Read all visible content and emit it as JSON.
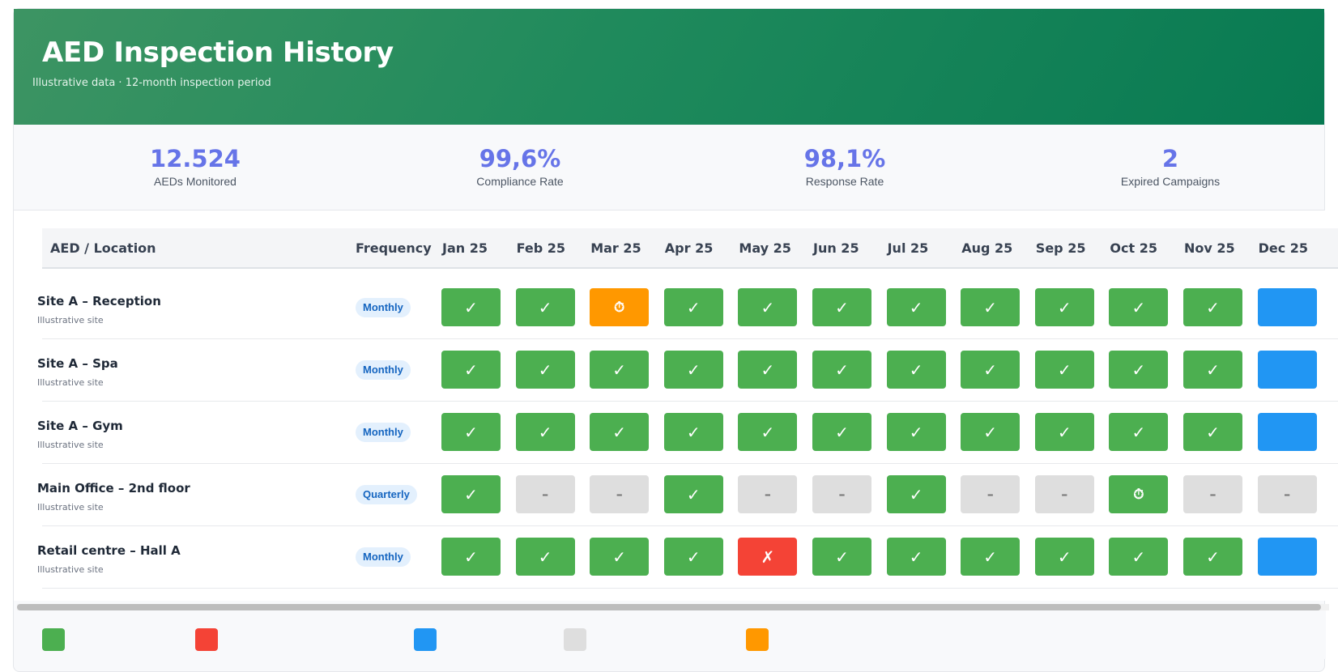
{
  "header": {
    "title": "AED Inspection History",
    "subtitle": "Illustrative data · 12-month inspection period"
  },
  "stats": [
    {
      "value": "12.524",
      "label": "AEDs Monitored"
    },
    {
      "value": "99,6%",
      "label": "Compliance Rate"
    },
    {
      "value": "98,1%",
      "label": "Response Rate"
    },
    {
      "value": "2",
      "label": "Expired Campaigns"
    }
  ],
  "table": {
    "columns": {
      "location": "AED / Location",
      "frequency": "Frequency",
      "months": [
        "Jan 25",
        "Feb 25",
        "Mar 25",
        "Apr 25",
        "May 25",
        "Jun 25",
        "Jul 25",
        "Aug 25",
        "Sep 25",
        "Oct 25",
        "Nov 25",
        "Dec 25"
      ]
    },
    "status_glyphs": {
      "ok": "✓",
      "na": "–",
      "warn": "⏱",
      "sched": "⏱",
      "fail": "✗",
      "blue": ""
    },
    "status_colors": {
      "ok": "#4caf50",
      "na": "#dedede",
      "warn": "#ff9800",
      "fail": "#f44336",
      "blue": "#2196f3"
    },
    "rows": [
      {
        "name": "Site A – Reception",
        "sub": "Illustrative site",
        "frequency": "Monthly",
        "statuses": [
          "ok",
          "ok",
          "warn",
          "ok",
          "ok",
          "ok",
          "ok",
          "ok",
          "ok",
          "ok",
          "ok",
          "blue"
        ]
      },
      {
        "name": "Site A – Spa",
        "sub": "Illustrative site",
        "frequency": "Monthly",
        "statuses": [
          "ok",
          "ok",
          "ok",
          "ok",
          "ok",
          "ok",
          "ok",
          "ok",
          "ok",
          "ok",
          "ok",
          "blue"
        ]
      },
      {
        "name": "Site A – Gym",
        "sub": "Illustrative site",
        "frequency": "Monthly",
        "statuses": [
          "ok",
          "ok",
          "ok",
          "ok",
          "ok",
          "ok",
          "ok",
          "ok",
          "ok",
          "ok",
          "ok",
          "blue"
        ]
      },
      {
        "name": "Main Office – 2nd floor",
        "sub": "Illustrative site",
        "frequency": "Quarterly",
        "statuses": [
          "ok",
          "na",
          "na",
          "ok",
          "na",
          "na",
          "ok",
          "na",
          "na",
          "sched",
          "na",
          "na"
        ]
      },
      {
        "name": "Retail centre – Hall A",
        "sub": "Illustrative site",
        "frequency": "Monthly",
        "statuses": [
          "ok",
          "ok",
          "ok",
          "ok",
          "fail",
          "ok",
          "ok",
          "ok",
          "ok",
          "ok",
          "ok",
          "blue"
        ]
      }
    ]
  },
  "legend": {
    "swatch_colors": [
      "#4caf50",
      "#f44336",
      "#2196f3",
      "#dedede",
      "#ff9800"
    ]
  }
}
